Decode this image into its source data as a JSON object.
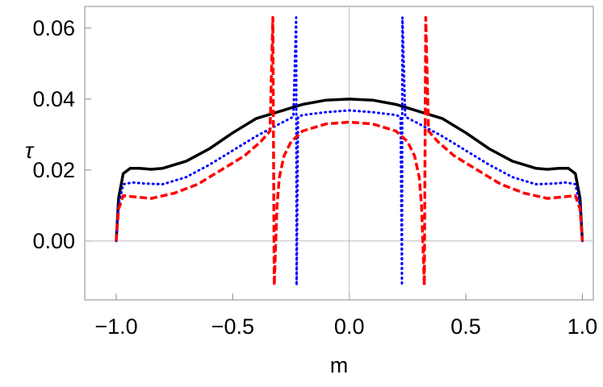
{
  "chart_data": {
    "type": "line",
    "x_label": "m",
    "y_label": "τ",
    "xlim": [
      -1.135,
      1.047
    ],
    "ylim": [
      -0.0166,
      0.0661
    ],
    "xticks": [
      {
        "value": -1,
        "label": "−1.0"
      },
      {
        "value": -0.5,
        "label": "−0.5"
      },
      {
        "value": 0,
        "label": "0.0"
      },
      {
        "value": 0.5,
        "label": "0.5"
      },
      {
        "value": 1,
        "label": "1.0"
      }
    ],
    "yticks": [
      {
        "value": 0,
        "label": "0.00"
      },
      {
        "value": 0.02,
        "label": "0.02"
      },
      {
        "value": 0.04,
        "label": "0.04"
      },
      {
        "value": 0.06,
        "label": "0.06"
      }
    ],
    "axes": true,
    "series": [
      {
        "color": "#000000",
        "style": "solid",
        "x": [
          -1,
          -0.99,
          -0.97,
          -0.94,
          -0.9,
          -0.85,
          -0.8,
          -0.7,
          -0.6,
          -0.5,
          -0.4,
          -0.3,
          -0.2,
          -0.1,
          0,
          0.1,
          0.2,
          0.3,
          0.4,
          0.5,
          0.6,
          0.7,
          0.8,
          0.85,
          0.9,
          0.94,
          0.97,
          0.99,
          1
        ],
        "values": [
          0,
          0.012,
          0.019,
          0.0205,
          0.0205,
          0.0202,
          0.0205,
          0.0225,
          0.026,
          0.0305,
          0.0345,
          0.0365,
          0.0385,
          0.0397,
          0.04,
          0.0397,
          0.0385,
          0.0365,
          0.0345,
          0.0305,
          0.026,
          0.0225,
          0.0205,
          0.0202,
          0.0205,
          0.0205,
          0.019,
          0.012,
          0
        ]
      },
      {
        "color": "#0000ff",
        "style": "dotted",
        "x": [
          -1,
          -0.99,
          -0.97,
          -0.93,
          -0.88,
          -0.8,
          -0.7,
          -0.6,
          -0.5,
          -0.4,
          -0.3,
          -0.24,
          -0.228,
          -0.226,
          -0.22,
          -0.2,
          -0.1,
          0,
          0.1,
          0.2,
          0.22,
          0.226,
          0.228,
          0.24,
          0.3,
          0.4,
          0.5,
          0.6,
          0.7,
          0.8,
          0.88,
          0.93,
          0.97,
          0.99,
          1
        ],
        "values": [
          0,
          0.01,
          0.016,
          0.0165,
          0.0162,
          0.016,
          0.018,
          0.0215,
          0.0255,
          0.0295,
          0.033,
          0.035,
          0.063,
          -0.0125,
          0.035,
          0.0355,
          0.0363,
          0.0368,
          0.0363,
          0.0355,
          0.035,
          -0.0125,
          0.063,
          0.035,
          0.033,
          0.0295,
          0.0255,
          0.0215,
          0.018,
          0.016,
          0.0162,
          0.0165,
          0.016,
          0.01,
          0
        ]
      },
      {
        "color": "#ff0000",
        "style": "dashed",
        "x": [
          -1,
          -0.99,
          -0.97,
          -0.93,
          -0.85,
          -0.75,
          -0.65,
          -0.55,
          -0.45,
          -0.38,
          -0.34,
          -0.328,
          -0.322,
          -0.31,
          -0.3,
          -0.28,
          -0.25,
          -0.2,
          -0.1,
          0,
          0.1,
          0.2,
          0.25,
          0.28,
          0.3,
          0.31,
          0.322,
          0.328,
          0.34,
          0.38,
          0.45,
          0.55,
          0.65,
          0.75,
          0.85,
          0.93,
          0.97,
          0.99,
          1
        ],
        "values": [
          0,
          0.009,
          0.0128,
          0.0125,
          0.012,
          0.0135,
          0.016,
          0.02,
          0.024,
          0.028,
          0.031,
          0.063,
          -0.0125,
          0.01,
          0.018,
          0.024,
          0.028,
          0.031,
          0.033,
          0.0335,
          0.033,
          0.031,
          0.028,
          0.024,
          0.018,
          0.01,
          -0.0125,
          0.063,
          0.031,
          0.028,
          0.024,
          0.02,
          0.016,
          0.0135,
          0.012,
          0.0125,
          0.0128,
          0.009,
          0
        ]
      }
    ]
  }
}
